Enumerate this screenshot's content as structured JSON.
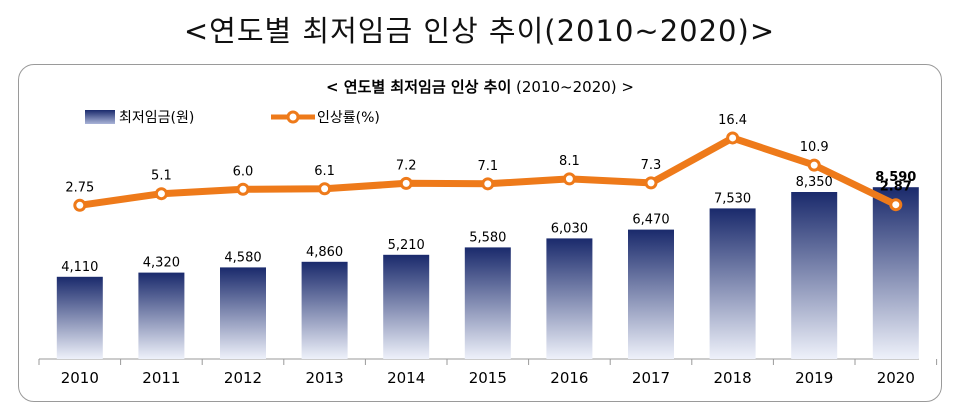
{
  "page_title": "<연도별 최저임금 인상 추이(2010~2020)>",
  "chart_data": {
    "type": "bar",
    "title_bold": "< 연도별 최저임금 인상 추이",
    "title_rest": " (2010~2020) >",
    "categories": [
      "2010",
      "2011",
      "2012",
      "2013",
      "2014",
      "2015",
      "2016",
      "2017",
      "2018",
      "2019",
      "2020"
    ],
    "series": [
      {
        "name": "최저임금(원)",
        "type": "bar",
        "values": [
          4110,
          4320,
          4580,
          4860,
          5210,
          5580,
          6030,
          6470,
          7530,
          8350,
          8590
        ],
        "labels": [
          "4,110",
          "4,320",
          "4,580",
          "4,860",
          "5,210",
          "5,580",
          "6,030",
          "6,470",
          "7,530",
          "8,350",
          "8,590"
        ]
      },
      {
        "name": "인상률(%)",
        "type": "line",
        "values": [
          2.75,
          5.1,
          6.0,
          6.1,
          7.2,
          7.1,
          8.1,
          7.3,
          16.4,
          10.9,
          2.87
        ],
        "labels": [
          "2.75",
          "5.1",
          "6.0",
          "6.1",
          "7.2",
          "7.1",
          "8.1",
          "7.3",
          "16.4",
          "10.9",
          "2.87"
        ]
      }
    ],
    "bar_ylim": [
      0,
      8700
    ],
    "line_ylim": [
      2,
      17
    ],
    "colors": {
      "bar_top": "#1a2a6c",
      "bar_bottom": "#eef1fa",
      "line": "#ee7a1a",
      "marker_fill": "#ffffff"
    }
  }
}
